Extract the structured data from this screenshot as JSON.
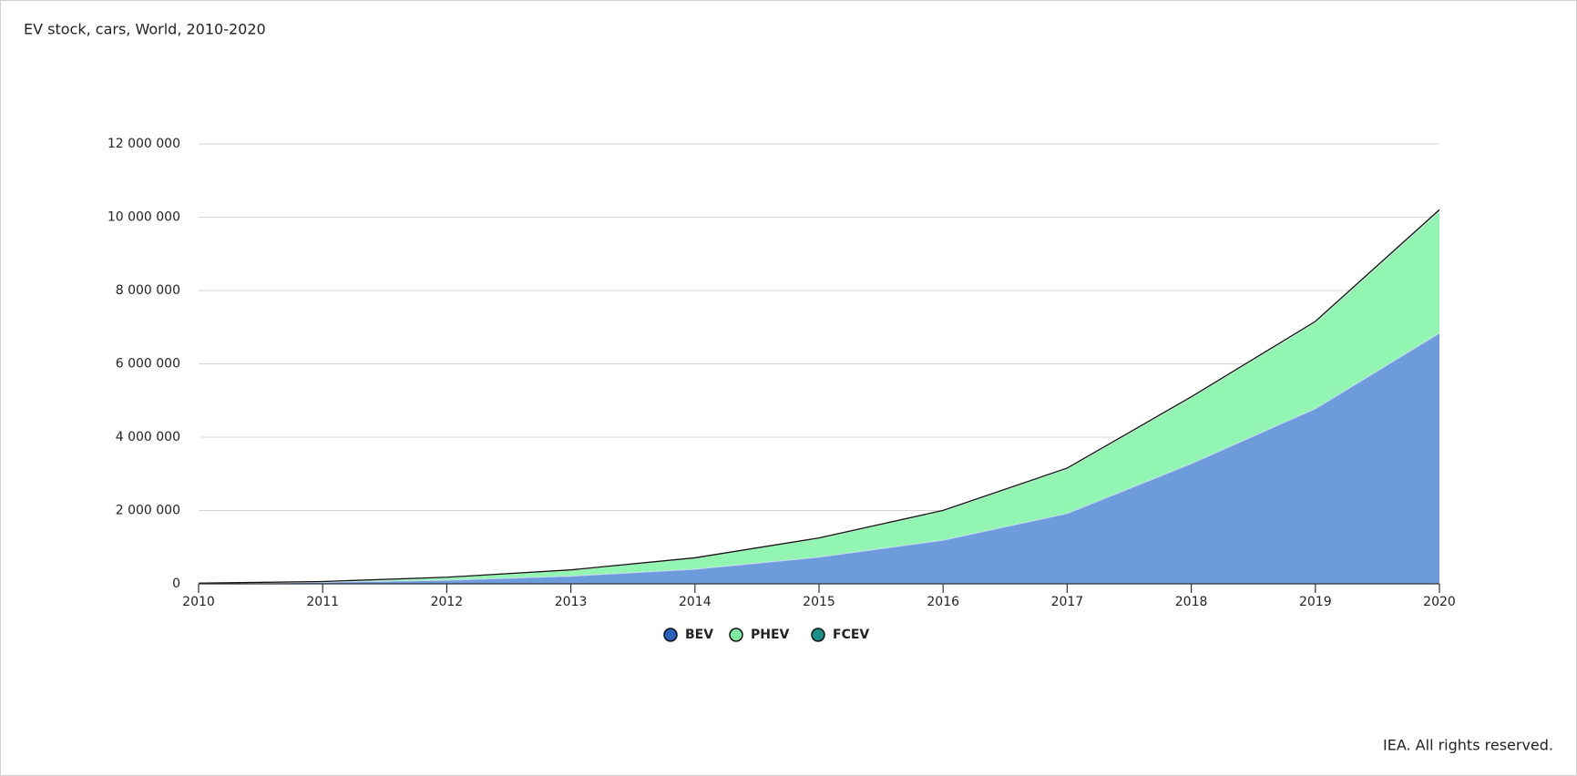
{
  "chart_data": {
    "type": "stacked-area",
    "title": "EV stock, cars, World, 2010-2020",
    "source": "IEA. All rights reserved.",
    "x": [
      2010,
      2011,
      2012,
      2013,
      2014,
      2015,
      2016,
      2017,
      2018,
      2019,
      2020
    ],
    "xlim": [
      2010,
      2020
    ],
    "xticks": [
      2010,
      2011,
      2012,
      2013,
      2014,
      2015,
      2016,
      2017,
      2018,
      2019,
      2020
    ],
    "ylim": [
      0,
      12000000
    ],
    "yticks": [
      0,
      {
        "value": 2000000,
        "label": "2 000 000"
      },
      {
        "value": 4000000,
        "label": "4 000 000"
      },
      {
        "value": 6000000,
        "label": "6 000 000"
      },
      {
        "value": 8000000,
        "label": "8 000 000"
      },
      {
        "value": 10000000,
        "label": "10 000 000"
      },
      {
        "value": 12000000,
        "label": "12 000 000"
      }
    ],
    "grid": true,
    "series": [
      {
        "name": "BEV",
        "color": "#6e9bdc",
        "marker_color": "#2a5fb8",
        "values": [
          17000,
          56000,
          110000,
          220000,
          410000,
          740000,
          1200000,
          1930000,
          3290000,
          4790000,
          6850000
        ]
      },
      {
        "name": "PHEV",
        "color": "#92f5b2",
        "marker_color": "#7eeaa2",
        "values": [
          400,
          6000,
          70000,
          160000,
          300000,
          510000,
          800000,
          1220000,
          1800000,
          2350000,
          3330000
        ]
      },
      {
        "name": "FCEV",
        "color": "#1b8f86",
        "marker_color": "#1b8f86",
        "values": [
          0,
          0,
          0,
          0,
          0,
          1000,
          3000,
          7000,
          11000,
          18000,
          25000
        ]
      }
    ]
  }
}
